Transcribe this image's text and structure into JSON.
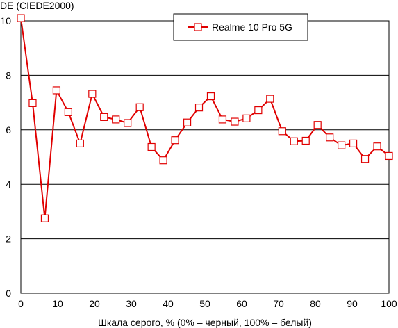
{
  "chart_data": {
    "type": "line",
    "ylabel": "DE (CIEDE2000)",
    "xlabel": "Шкала серого, % (0% – черный, 100% – белый)",
    "xlim": [
      0,
      100
    ],
    "ylim": [
      0,
      10
    ],
    "xticks": [
      0,
      10,
      20,
      30,
      40,
      50,
      60,
      70,
      80,
      90,
      100
    ],
    "yticks": [
      0,
      2,
      4,
      6,
      8,
      10
    ],
    "grid": "horizontal",
    "legend_position": "top-right",
    "series": [
      {
        "name": "Realme 10 Pro 5G",
        "color": "#e00000",
        "marker": "square",
        "x": [
          0,
          3.2,
          6.5,
          9.7,
          12.9,
          16.1,
          19.4,
          22.6,
          25.8,
          29.0,
          32.3,
          35.5,
          38.7,
          41.9,
          45.2,
          48.4,
          51.6,
          54.8,
          58.1,
          61.3,
          64.5,
          67.7,
          71.0,
          74.2,
          77.4,
          80.6,
          83.9,
          87.1,
          90.3,
          93.5,
          96.8,
          100
        ],
        "y": [
          10.1,
          6.98,
          2.75,
          7.45,
          6.65,
          5.5,
          7.32,
          6.47,
          6.38,
          6.25,
          6.83,
          5.37,
          4.88,
          5.62,
          6.27,
          6.82,
          7.23,
          6.38,
          6.3,
          6.42,
          6.72,
          7.14,
          5.95,
          5.58,
          5.6,
          6.18,
          5.72,
          5.43,
          5.5,
          4.93,
          5.39,
          5.04
        ]
      }
    ]
  }
}
